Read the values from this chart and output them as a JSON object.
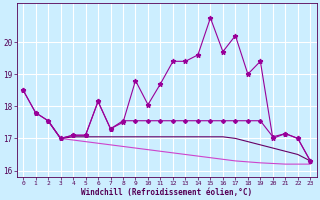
{
  "xlabel": "Windchill (Refroidissement éolien,°C)",
  "background_color": "#cceeff",
  "grid_color": "#aadddd",
  "line1_color": "#990099",
  "line2_color": "#990099",
  "line3_color": "#660066",
  "line4_color": "#cc44cc",
  "xlim": [
    -0.5,
    23.5
  ],
  "ylim": [
    15.8,
    21.2
  ],
  "yticks": [
    16,
    17,
    18,
    19,
    20
  ],
  "xticks": [
    0,
    1,
    2,
    3,
    4,
    5,
    6,
    7,
    8,
    9,
    10,
    11,
    12,
    13,
    14,
    15,
    16,
    17,
    18,
    19,
    20,
    21,
    22,
    23
  ],
  "line1_x": [
    0,
    1,
    2,
    3,
    4,
    5,
    6,
    7,
    8,
    9,
    10,
    11,
    12,
    13,
    14,
    15,
    16,
    17,
    18,
    19,
    20,
    21,
    22,
    23
  ],
  "line1_y": [
    18.5,
    17.8,
    17.55,
    17.0,
    17.1,
    17.1,
    18.15,
    17.3,
    17.5,
    18.8,
    18.05,
    18.7,
    19.4,
    19.4,
    19.6,
    20.75,
    19.7,
    20.2,
    19.0,
    19.4,
    17.0,
    17.15,
    17.0,
    16.3
  ],
  "line2_x": [
    0,
    1,
    2,
    3,
    4,
    5,
    6,
    7,
    8,
    9,
    10,
    11,
    12,
    13,
    14,
    15,
    16,
    17,
    18,
    19,
    20,
    21,
    22,
    23
  ],
  "line2_y": [
    18.5,
    17.8,
    17.55,
    17.0,
    17.1,
    17.1,
    18.15,
    17.3,
    17.55,
    17.55,
    17.55,
    17.55,
    17.55,
    17.55,
    17.55,
    17.55,
    17.55,
    17.55,
    17.55,
    17.55,
    17.05,
    17.15,
    17.0,
    16.3
  ],
  "line3_x": [
    2,
    3,
    4,
    5,
    6,
    7,
    8,
    9,
    10,
    11,
    12,
    13,
    14,
    15,
    16,
    17,
    18,
    19,
    20,
    21,
    22,
    23
  ],
  "line3_y": [
    17.55,
    17.0,
    17.05,
    17.05,
    17.05,
    17.05,
    17.05,
    17.05,
    17.05,
    17.05,
    17.05,
    17.05,
    17.05,
    17.05,
    17.05,
    17.0,
    16.9,
    16.8,
    16.7,
    16.6,
    16.5,
    16.3
  ],
  "line4_x": [
    2,
    3,
    4,
    5,
    6,
    7,
    8,
    9,
    10,
    11,
    12,
    13,
    14,
    15,
    16,
    17,
    18,
    19,
    20,
    21,
    22,
    23
  ],
  "line4_y": [
    17.55,
    17.0,
    16.95,
    16.9,
    16.85,
    16.8,
    16.75,
    16.7,
    16.65,
    16.6,
    16.55,
    16.5,
    16.45,
    16.4,
    16.35,
    16.3,
    16.27,
    16.24,
    16.22,
    16.2,
    16.2,
    16.2
  ]
}
